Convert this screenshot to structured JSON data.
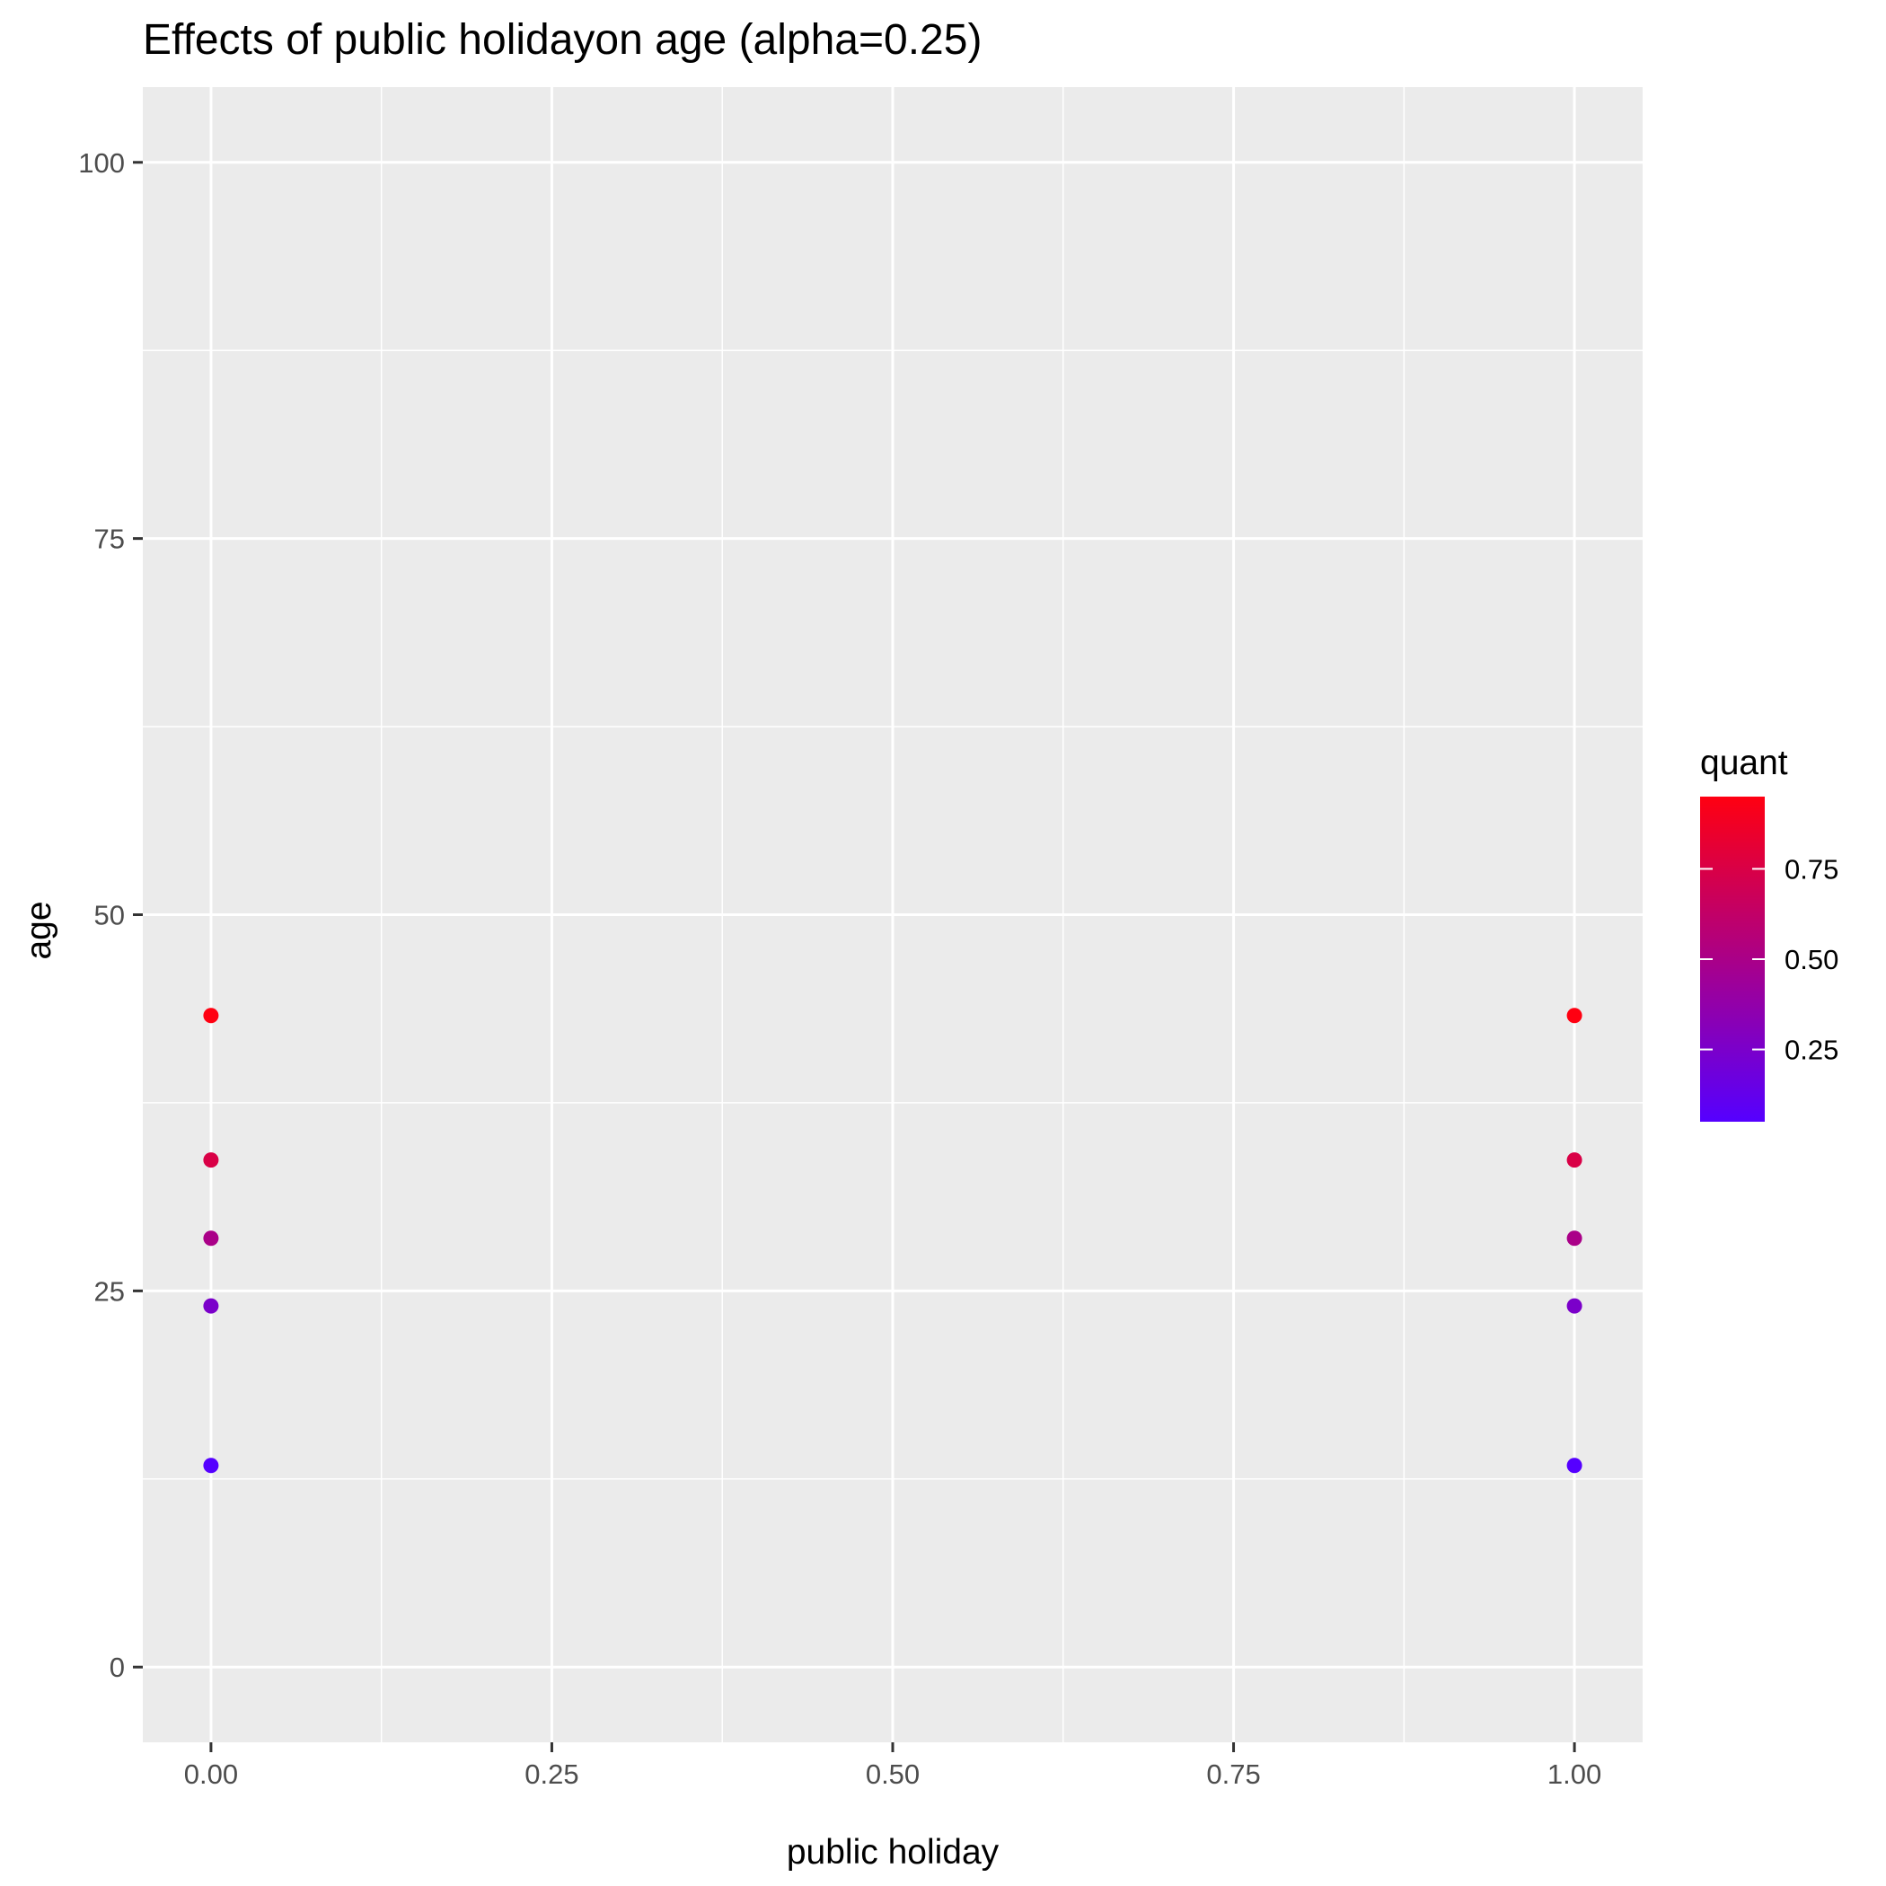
{
  "chart_data": {
    "type": "scatter",
    "title": "Effects of public holidayon age (alpha=0.25)",
    "xlabel": "public holiday",
    "ylabel": "age",
    "xlim": [
      -0.05,
      1.05
    ],
    "ylim": [
      -5,
      105
    ],
    "x_ticks": [
      0.0,
      0.25,
      0.5,
      0.75,
      1.0
    ],
    "x_tick_labels": [
      "0.00",
      "0.25",
      "0.50",
      "0.75",
      "1.00"
    ],
    "y_ticks": [
      0,
      25,
      50,
      75,
      100
    ],
    "y_tick_labels": [
      "0",
      "25",
      "50",
      "75",
      "100"
    ],
    "grid": true,
    "legend": {
      "title": "quant",
      "placement": "right",
      "type": "colorbar",
      "range": [
        0.05,
        0.95
      ],
      "ticks": [
        0.25,
        0.5,
        0.75
      ],
      "tick_labels": [
        "0.25",
        "0.50",
        "0.75"
      ],
      "low_color": "#5500FF",
      "high_color": "#FF0011"
    },
    "colors": {
      "panel_bg": "#EBEBEB",
      "grid": "#FFFFFF",
      "tick": "#333333"
    },
    "points": [
      {
        "x": 0,
        "y": 43.3,
        "quant": 0.95
      },
      {
        "x": 0,
        "y": 33.7,
        "quant": 0.75
      },
      {
        "x": 0,
        "y": 28.5,
        "quant": 0.5
      },
      {
        "x": 0,
        "y": 24.0,
        "quant": 0.25
      },
      {
        "x": 0,
        "y": 13.4,
        "quant": 0.05
      },
      {
        "x": 1,
        "y": 43.3,
        "quant": 0.95
      },
      {
        "x": 1,
        "y": 33.7,
        "quant": 0.75
      },
      {
        "x": 1,
        "y": 28.5,
        "quant": 0.5
      },
      {
        "x": 1,
        "y": 24.0,
        "quant": 0.25
      },
      {
        "x": 1,
        "y": 13.4,
        "quant": 0.05
      }
    ]
  }
}
